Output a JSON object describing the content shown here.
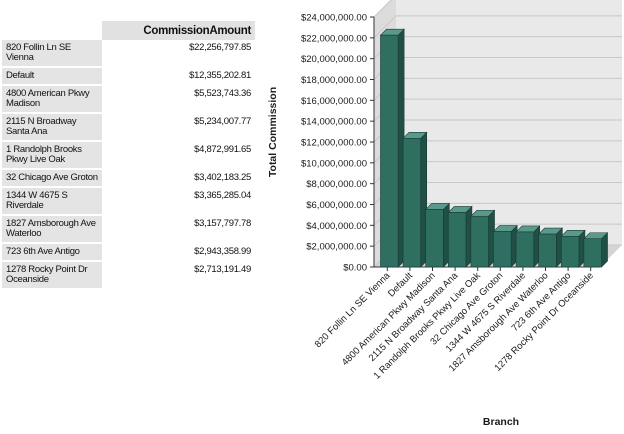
{
  "table": {
    "header": "CommissionAmount",
    "rows": [
      {
        "branch": "820 Follin Ln SE Vienna",
        "amount": "$22,256,797.85"
      },
      {
        "branch": "Default",
        "amount": "$12,355,202.81"
      },
      {
        "branch": "4800 American Pkwy Madison",
        "amount": "$5,523,743.36"
      },
      {
        "branch": "2115 N Broadway Santa Ana",
        "amount": "$5,234,007.77"
      },
      {
        "branch": "1 Randolph Brooks Pkwy Live Oak",
        "amount": "$4,872,991.65"
      },
      {
        "branch": "32 Chicago Ave Groton",
        "amount": "$3,402,183.25"
      },
      {
        "branch": "1344 W 4675 S Riverdale",
        "amount": "$3,365,285.04"
      },
      {
        "branch": "1827 Amsborough Ave Waterloo",
        "amount": "$3,157,797.78"
      },
      {
        "branch": "723 6th Ave Antigo",
        "amount": "$2,943,358.99"
      },
      {
        "branch": "1278 Rocky Point Dr Oceanside",
        "amount": "$2,713,191.49"
      }
    ]
  },
  "chart_data": {
    "type": "bar",
    "xlabel": "Branch",
    "ylabel": "Total Commission",
    "ylim": [
      0,
      24000000
    ],
    "ytick_step": 2000000,
    "yticks": [
      "$0.00",
      "$2,000,000.00",
      "$4,000,000.00",
      "$6,000,000.00",
      "$8,000,000.00",
      "$10,000,000.00",
      "$12,000,000.00",
      "$14,000,000.00",
      "$16,000,000.00",
      "$18,000,000.00",
      "$20,000,000.00",
      "$22,000,000.00",
      "$24,000,000.00"
    ],
    "categories": [
      "820 Follin Ln SE Vienna",
      "Default",
      "4800 American Pkwy Madison",
      "2115 N Broadway Santa Ana",
      "1 Randolph Brooks Pkwy Live Oak",
      "32 Chicago Ave Groton",
      "1344 W 4675 S Riverdale",
      "1827 Amsborough Ave Waterloo",
      "723 6th Ave Antigo",
      "1278 Rocky Point Dr Oceanside"
    ],
    "values": [
      22256797.85,
      12355202.81,
      5523743.36,
      5234007.77,
      4872991.65,
      3402183.25,
      3365285.04,
      3157797.78,
      2943358.99,
      2713191.49
    ],
    "grid": true,
    "colors": {
      "bar_front": "#2f6f62",
      "bar_top": "#5a9a8c",
      "bar_side": "#1f4f45",
      "wall": "#e9e9e9",
      "grid": "#c8c8c8"
    }
  }
}
